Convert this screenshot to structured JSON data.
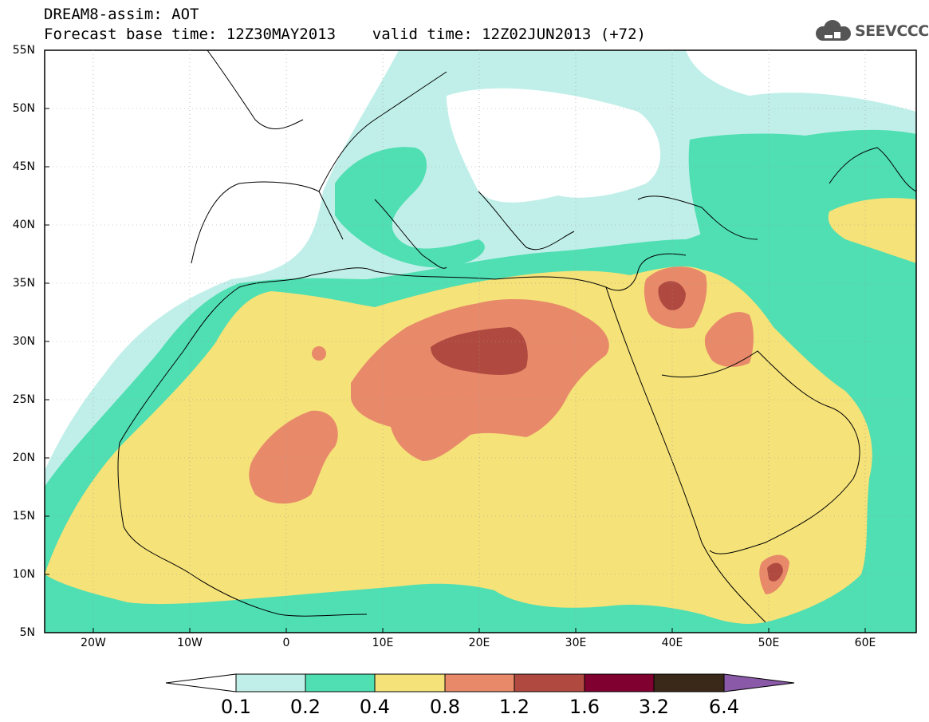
{
  "header": {
    "title_line1": "DREAM8-assim: AOT",
    "title_line2": "Forecast base time: 12Z30MAY2013    valid time: 12Z02JUN2013 (+72)",
    "logo_text": "SEEVCCC"
  },
  "map": {
    "lat_labels": [
      "55N",
      "50N",
      "45N",
      "40N",
      "35N",
      "30N",
      "25N",
      "20N",
      "15N",
      "10N",
      "5N"
    ],
    "lon_labels": [
      "20W",
      "10W",
      "0",
      "10E",
      "20E",
      "30E",
      "40E",
      "50E",
      "60E"
    ],
    "lon_range": [
      -25,
      65
    ],
    "lat_range": [
      5,
      55
    ]
  },
  "legend": {
    "levels": [
      "0.1",
      "0.2",
      "0.4",
      "0.8",
      "1.2",
      "1.6",
      "3.2",
      "6.4"
    ],
    "colors": [
      "#ffffff",
      "#c0efe9",
      "#4fdfb2",
      "#f5e279",
      "#e88a6a",
      "#b04a40",
      "#800030",
      "#3a2818",
      "#8a5aa8"
    ]
  }
}
